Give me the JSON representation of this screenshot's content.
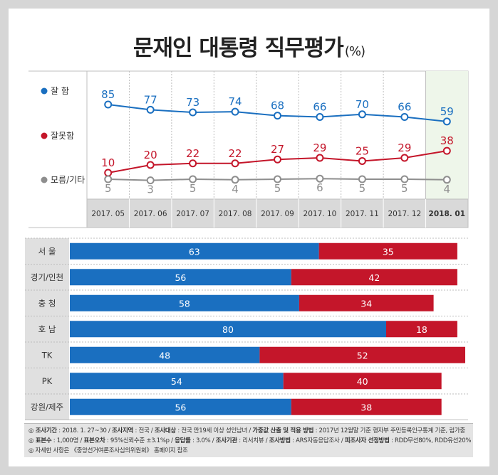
{
  "title": "문재인 대통령 직무평가",
  "title_unit": "(%)",
  "chart_data": [
    {
      "type": "line",
      "x": [
        "2017. 05",
        "2017. 06",
        "2017. 07",
        "2017. 08",
        "2017. 09",
        "2017. 10",
        "2017. 11",
        "2017. 12",
        "2018. 01"
      ],
      "series": [
        {
          "name": "잘 함",
          "color": "#1a6fc0",
          "values": [
            85,
            77,
            73,
            74,
            68,
            66,
            70,
            66,
            59
          ]
        },
        {
          "name": "잘못함",
          "color": "#c4162a",
          "values": [
            10,
            20,
            22,
            22,
            27,
            29,
            25,
            29,
            38
          ]
        },
        {
          "name": "모름/기타",
          "color": "#8e8e8e",
          "values": [
            5,
            3,
            5,
            4,
            5,
            6,
            5,
            5,
            4
          ]
        }
      ],
      "highlight_last": true
    },
    {
      "type": "bar",
      "stacked": true,
      "orientation": "horizontal",
      "categories": [
        "서 울",
        "경기/인천",
        "충 청",
        "호 남",
        "TK",
        "PK",
        "강원/제주"
      ],
      "series": [
        {
          "name": "잘 함",
          "color": "#1a6fc0",
          "values": [
            63,
            56,
            58,
            80,
            48,
            54,
            56
          ]
        },
        {
          "name": "잘못함",
          "color": "#c4162a",
          "values": [
            35,
            42,
            34,
            18,
            52,
            40,
            38
          ]
        }
      ]
    }
  ],
  "footer": {
    "line1": [
      {
        "b": "◎ 조사기간",
        "t": " : 2018. 1. 27~30 / "
      },
      {
        "b": "조사지역",
        "t": " : 전국 / "
      },
      {
        "b": "조사대상",
        "t": " : 전국 만19세 이상 성인남녀 / "
      },
      {
        "b": "가중값 산출 및 적용 방법",
        "t": " : 2017년 12월말 기준 행자부 주민등록인구통계 기준, 림가중"
      }
    ],
    "line2": [
      {
        "b": "◎ 표본수",
        "t": " : 1,000명 / "
      },
      {
        "b": "표본오차",
        "t": " : 95%신뢰수준 ±3.1%p / "
      },
      {
        "b": "응답률",
        "t": " : 3.0% / "
      },
      {
        "b": "조사기관",
        "t": " : 리서치뷰 / "
      },
      {
        "b": "조사방법",
        "t": " : ARS자동응답조사 / "
      },
      {
        "b": "피조사자 선정방법",
        "t": " : RDD무선80%, RDD유선20%"
      }
    ],
    "line3": "◎ 자세한 사항은 《중앙선거여론조사심의위원회》 홈페이지 참조"
  }
}
